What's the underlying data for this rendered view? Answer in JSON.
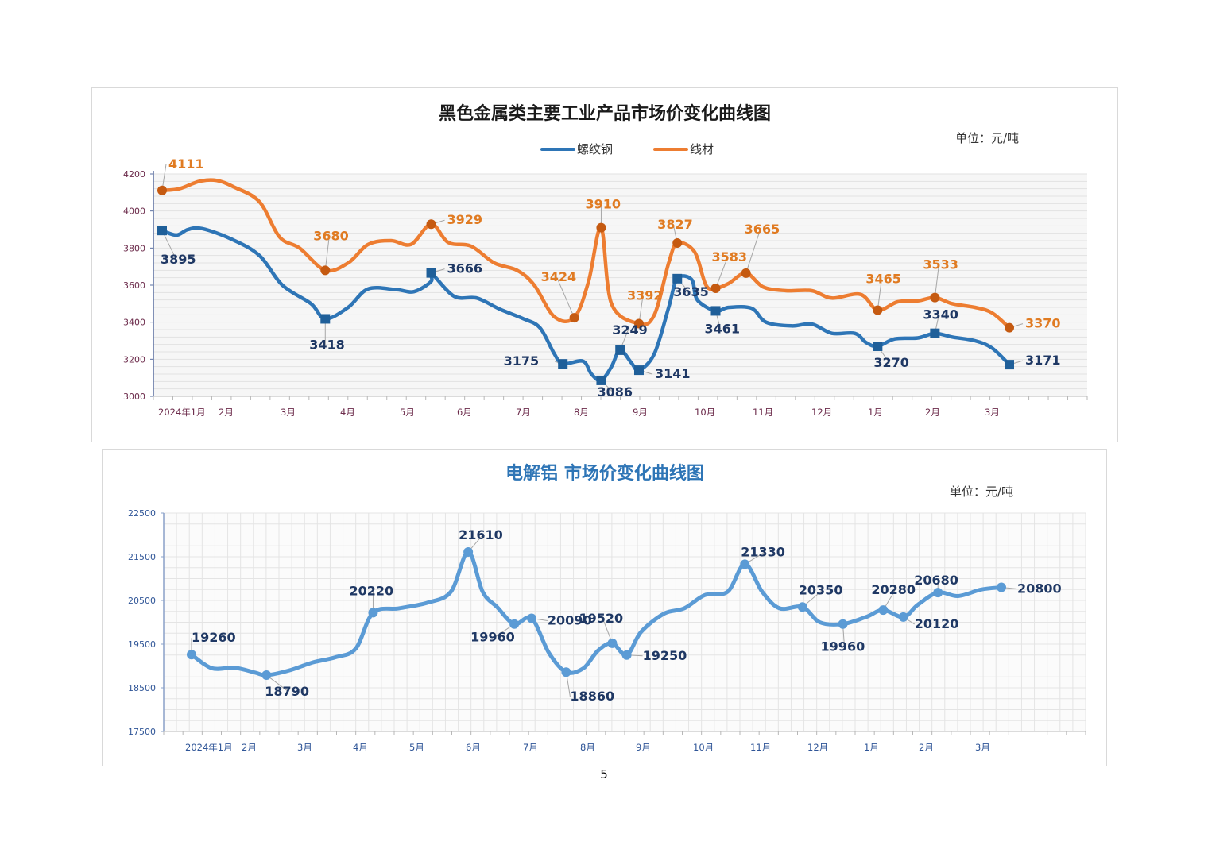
{
  "page_number": "5",
  "chart_data": [
    {
      "type": "line",
      "title": "黑色金属类主要工业产品市场价变化曲线图",
      "unit": "单位：元/吨",
      "x_tick_labels": [
        "2024年1月",
        "2月",
        "3月",
        "4月",
        "5月",
        "6月",
        "7月",
        "8月",
        "9月",
        "10月",
        "11月",
        "12月",
        "1月",
        "2月",
        "3月"
      ],
      "x_range": [
        0,
        16
      ],
      "ylim": [
        3000,
        4200
      ],
      "y_ticks": [
        3000,
        3200,
        3400,
        3600,
        3800,
        4000,
        4200
      ],
      "legend_position": "top-center",
      "grid": true,
      "series": [
        {
          "name": "螺纹钢",
          "color": "#2e75b6",
          "marker": "square",
          "curve": [
            [
              0,
              3895
            ],
            [
              0.25,
              3870
            ],
            [
              0.45,
              3900
            ],
            [
              0.7,
              3905
            ],
            [
              1.2,
              3850
            ],
            [
              1.7,
              3760
            ],
            [
              2.1,
              3600
            ],
            [
              2.6,
              3500
            ],
            [
              2.85,
              3418
            ],
            [
              3.25,
              3480
            ],
            [
              3.6,
              3580
            ],
            [
              4.1,
              3575
            ],
            [
              4.4,
              3565
            ],
            [
              4.7,
              3620
            ],
            [
              4.7,
              3666
            ],
            [
              5.1,
              3540
            ],
            [
              5.5,
              3530
            ],
            [
              5.9,
              3470
            ],
            [
              6.3,
              3420
            ],
            [
              6.6,
              3370
            ],
            [
              6.85,
              3230
            ],
            [
              7.0,
              3175
            ],
            [
              7.35,
              3190
            ],
            [
              7.5,
              3120
            ],
            [
              7.67,
              3086
            ],
            [
              7.85,
              3160
            ],
            [
              8.0,
              3249
            ],
            [
              8.2,
              3180
            ],
            [
              8.33,
              3141
            ],
            [
              8.6,
              3230
            ],
            [
              8.85,
              3480
            ],
            [
              9.0,
              3635
            ],
            [
              9.25,
              3630
            ],
            [
              9.35,
              3520
            ],
            [
              9.67,
              3461
            ],
            [
              9.9,
              3480
            ],
            [
              10.3,
              3475
            ],
            [
              10.55,
              3400
            ],
            [
              11.0,
              3380
            ],
            [
              11.35,
              3390
            ],
            [
              11.7,
              3340
            ],
            [
              12.1,
              3340
            ],
            [
              12.3,
              3290
            ],
            [
              12.5,
              3270
            ],
            [
              12.8,
              3310
            ],
            [
              13.2,
              3315
            ],
            [
              13.5,
              3340
            ],
            [
              13.8,
              3320
            ],
            [
              14.2,
              3300
            ],
            [
              14.5,
              3260
            ],
            [
              14.8,
              3171
            ]
          ],
          "points": [
            {
              "x": 0,
              "y": 3895,
              "label": "3895"
            },
            {
              "x": 2.85,
              "y": 3418,
              "label": "3418"
            },
            {
              "x": 4.7,
              "y": 3666,
              "label": "3666"
            },
            {
              "x": 7.0,
              "y": 3175,
              "label": "3175"
            },
            {
              "x": 7.67,
              "y": 3086,
              "label": "3086"
            },
            {
              "x": 8.0,
              "y": 3249,
              "label": "3249"
            },
            {
              "x": 8.33,
              "y": 3141,
              "label": "3141"
            },
            {
              "x": 9.0,
              "y": 3635,
              "label": "3635"
            },
            {
              "x": 9.67,
              "y": 3461,
              "label": "3461"
            },
            {
              "x": 12.5,
              "y": 3270,
              "label": "3270"
            },
            {
              "x": 13.5,
              "y": 3340,
              "label": "3340"
            },
            {
              "x": 14.8,
              "y": 3171,
              "label": "3171"
            }
          ]
        },
        {
          "name": "线材",
          "color": "#ed7d31",
          "marker": "circle",
          "curve": [
            [
              0,
              4111
            ],
            [
              0.3,
              4120
            ],
            [
              0.65,
              4160
            ],
            [
              0.95,
              4165
            ],
            [
              1.25,
              4130
            ],
            [
              1.7,
              4050
            ],
            [
              2.05,
              3860
            ],
            [
              2.4,
              3800
            ],
            [
              2.85,
              3680
            ],
            [
              3.25,
              3720
            ],
            [
              3.6,
              3820
            ],
            [
              4.0,
              3840
            ],
            [
              4.35,
              3820
            ],
            [
              4.7,
              3929
            ],
            [
              5.0,
              3830
            ],
            [
              5.4,
              3810
            ],
            [
              5.8,
              3720
            ],
            [
              6.2,
              3680
            ],
            [
              6.5,
              3600
            ],
            [
              6.85,
              3430
            ],
            [
              7.2,
              3424
            ],
            [
              7.45,
              3620
            ],
            [
              7.67,
              3910
            ],
            [
              7.85,
              3500
            ],
            [
              8.33,
              3392
            ],
            [
              8.6,
              3440
            ],
            [
              8.85,
              3720
            ],
            [
              9.0,
              3827
            ],
            [
              9.3,
              3780
            ],
            [
              9.5,
              3600
            ],
            [
              9.67,
              3583
            ],
            [
              9.9,
              3610
            ],
            [
              10.2,
              3665
            ],
            [
              10.5,
              3590
            ],
            [
              10.9,
              3570
            ],
            [
              11.35,
              3570
            ],
            [
              11.7,
              3530
            ],
            [
              12.2,
              3550
            ],
            [
              12.5,
              3465
            ],
            [
              12.85,
              3510
            ],
            [
              13.2,
              3515
            ],
            [
              13.5,
              3533
            ],
            [
              13.8,
              3500
            ],
            [
              14.2,
              3480
            ],
            [
              14.5,
              3450
            ],
            [
              14.8,
              3370
            ]
          ],
          "points": [
            {
              "x": 0,
              "y": 4111,
              "label": "4111"
            },
            {
              "x": 2.85,
              "y": 3680,
              "label": "3680"
            },
            {
              "x": 4.7,
              "y": 3929,
              "label": "3929"
            },
            {
              "x": 7.2,
              "y": 3424,
              "label": "3424"
            },
            {
              "x": 7.67,
              "y": 3910,
              "label": "3910"
            },
            {
              "x": 8.33,
              "y": 3392,
              "label": "3392"
            },
            {
              "x": 9.0,
              "y": 3827,
              "label": "3827"
            },
            {
              "x": 9.67,
              "y": 3583,
              "label": "3583"
            },
            {
              "x": 10.2,
              "y": 3665,
              "label": "3665"
            },
            {
              "x": 12.5,
              "y": 3465,
              "label": "3465"
            },
            {
              "x": 13.5,
              "y": 3533,
              "label": "3533"
            },
            {
              "x": 14.8,
              "y": 3370,
              "label": "3370"
            }
          ]
        }
      ]
    },
    {
      "type": "line",
      "title": "电解铝  市场价变化曲线图",
      "unit": "单位：元/吨",
      "x_tick_labels": [
        "2024年1月",
        "2月",
        "3月",
        "4月",
        "5月",
        "6月",
        "7月",
        "8月",
        "9月",
        "10月",
        "11月",
        "12月",
        "1月",
        "2月",
        "3月"
      ],
      "x_range": [
        0,
        16
      ],
      "ylim": [
        17500,
        22500
      ],
      "y_ticks": [
        17500,
        18500,
        19500,
        20500,
        21500,
        22500
      ],
      "grid": true,
      "series": [
        {
          "name": "",
          "color": "#5b9bd5",
          "marker": "circle",
          "curve": [
            [
              0,
              19260
            ],
            [
              0.35,
              18950
            ],
            [
              0.75,
              18960
            ],
            [
              1.1,
              18850
            ],
            [
              1.3,
              18790
            ],
            [
              1.7,
              18900
            ],
            [
              2.1,
              19080
            ],
            [
              2.5,
              19200
            ],
            [
              2.85,
              19400
            ],
            [
              3.15,
              20220
            ],
            [
              3.6,
              20320
            ],
            [
              4.1,
              20450
            ],
            [
              4.5,
              20700
            ],
            [
              4.8,
              21610
            ],
            [
              5.05,
              20700
            ],
            [
              5.3,
              20350
            ],
            [
              5.6,
              19960
            ],
            [
              5.9,
              20090
            ],
            [
              6.2,
              19300
            ],
            [
              6.5,
              18860
            ],
            [
              6.8,
              18950
            ],
            [
              7.05,
              19350
            ],
            [
              7.3,
              19520
            ],
            [
              7.55,
              19250
            ],
            [
              7.8,
              19780
            ],
            [
              8.2,
              20200
            ],
            [
              8.55,
              20320
            ],
            [
              8.9,
              20620
            ],
            [
              9.3,
              20700
            ],
            [
              9.6,
              21330
            ],
            [
              9.9,
              20700
            ],
            [
              10.2,
              20320
            ],
            [
              10.6,
              20350
            ],
            [
              10.9,
              20000
            ],
            [
              11.3,
              19960
            ],
            [
              11.7,
              20120
            ],
            [
              12.0,
              20280
            ],
            [
              12.35,
              20120
            ],
            [
              12.6,
              20400
            ],
            [
              12.95,
              20680
            ],
            [
              13.3,
              20600
            ],
            [
              13.7,
              20750
            ],
            [
              14.05,
              20800
            ]
          ],
          "points": [
            {
              "x": 0,
              "y": 19260,
              "label": "19260"
            },
            {
              "x": 1.3,
              "y": 18790,
              "label": "18790"
            },
            {
              "x": 3.15,
              "y": 20220,
              "label": "20220"
            },
            {
              "x": 4.8,
              "y": 21610,
              "label": "21610"
            },
            {
              "x": 5.6,
              "y": 19960,
              "label": "19960"
            },
            {
              "x": 5.9,
              "y": 20090,
              "label": "20090"
            },
            {
              "x": 6.5,
              "y": 18860,
              "label": "18860"
            },
            {
              "x": 7.3,
              "y": 19520,
              "label": "19520"
            },
            {
              "x": 7.55,
              "y": 19250,
              "label": "19250"
            },
            {
              "x": 9.6,
              "y": 21330,
              "label": "21330"
            },
            {
              "x": 10.6,
              "y": 20350,
              "label": "20350"
            },
            {
              "x": 11.3,
              "y": 19960,
              "label": "19960"
            },
            {
              "x": 12.0,
              "y": 20280,
              "label": "20280"
            },
            {
              "x": 12.35,
              "y": 20120,
              "label": "20120"
            },
            {
              "x": 12.95,
              "y": 20680,
              "label": "20680"
            },
            {
              "x": 14.05,
              "y": 20800,
              "label": "20800"
            }
          ]
        }
      ]
    }
  ]
}
